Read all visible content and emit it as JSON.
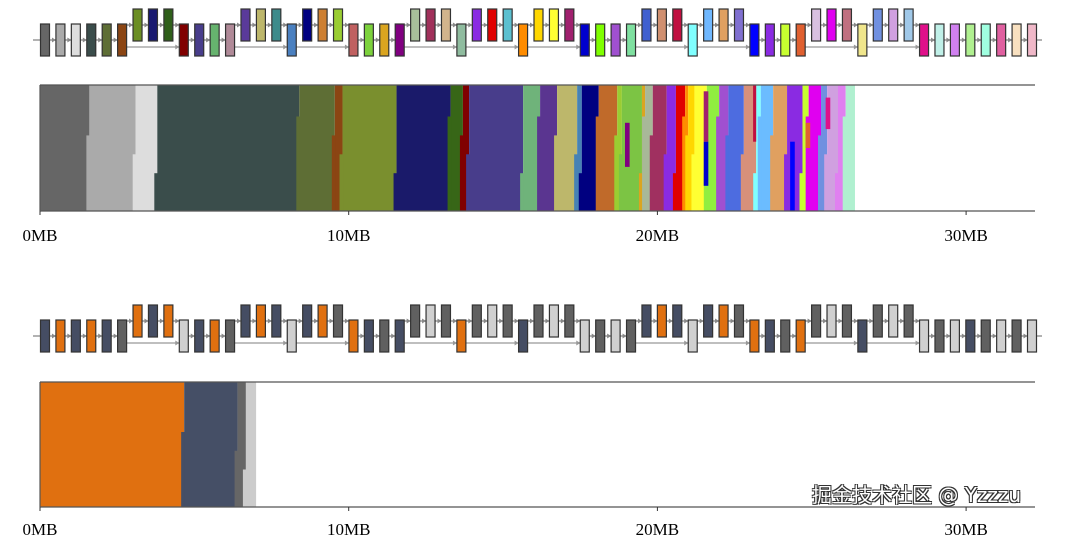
{
  "axis": {
    "unit_labels": [
      "0MB",
      "10MB",
      "20MB",
      "30MB"
    ],
    "ticks_mb": [
      0,
      10,
      20,
      30
    ],
    "xlim_mb": [
      0,
      32.2
    ]
  },
  "watermark": "掘金技术社区 @ Yzzzu",
  "panels": [
    {
      "layers": [
        [
          "low",
          "#666666"
        ],
        [
          "low",
          "#aaaaaa"
        ],
        [
          "low",
          "#dddddd"
        ],
        [
          "low",
          "#3a4d4b"
        ],
        [
          "low",
          "#5e6e35"
        ],
        [
          "low",
          "#8b4513"
        ],
        [
          "high",
          "#6b8e23"
        ],
        [
          "high",
          "#191970"
        ],
        [
          "high",
          "#2f5f1a"
        ],
        [
          "low",
          "#800000"
        ],
        [
          "low",
          "#483d8b"
        ],
        [
          "low",
          "#66b36e"
        ],
        [
          "low",
          "#b08a98"
        ],
        [
          "high",
          "#5a3a9a"
        ],
        [
          "high",
          "#bdb76b"
        ],
        [
          "high",
          "#3d8b8b"
        ],
        [
          "low",
          "#4a80c0"
        ],
        [
          "high",
          "#000080"
        ],
        [
          "high",
          "#cd7f32"
        ],
        [
          "high",
          "#9acd32"
        ],
        [
          "low",
          "#c06060"
        ],
        [
          "low",
          "#7cd13c"
        ],
        [
          "low",
          "#daa520"
        ],
        [
          "low",
          "#800080"
        ],
        [
          "high",
          "#a8c09a"
        ],
        [
          "high",
          "#a0305a"
        ],
        [
          "high",
          "#d2b48c"
        ],
        [
          "low",
          "#8fbc9f"
        ],
        [
          "high",
          "#8a2be2"
        ],
        [
          "high",
          "#e00000"
        ],
        [
          "high",
          "#5bc0d0"
        ],
        [
          "low",
          "#ff8c00"
        ],
        [
          "high",
          "#ffd700"
        ],
        [
          "high",
          "#ffff33"
        ],
        [
          "high",
          "#a0206e"
        ],
        [
          "low",
          "#0000cd"
        ],
        [
          "low",
          "#7fff00"
        ],
        [
          "low",
          "#a050d0"
        ],
        [
          "low",
          "#7fe0a0"
        ],
        [
          "high",
          "#4060d0"
        ],
        [
          "high",
          "#d09070"
        ],
        [
          "high",
          "#c01040"
        ],
        [
          "low",
          "#80ffff"
        ],
        [
          "high",
          "#70b8ff"
        ],
        [
          "high",
          "#e0a060"
        ],
        [
          "high",
          "#8070d0"
        ],
        [
          "low",
          "#0000ff"
        ],
        [
          "low",
          "#8a2be2"
        ],
        [
          "low",
          "#c8ff30"
        ],
        [
          "low",
          "#e06030"
        ],
        [
          "high",
          "#d8c0e0"
        ],
        [
          "high",
          "#e000f0"
        ],
        [
          "high",
          "#c07080"
        ],
        [
          "low",
          "#f0e68c"
        ],
        [
          "high",
          "#7090e0"
        ],
        [
          "high",
          "#d0a0e0"
        ],
        [
          "high",
          "#a0c8e8"
        ],
        [
          "low",
          "#e0108a"
        ],
        [
          "low",
          "#c0f0e8"
        ],
        [
          "low",
          "#d080f0"
        ],
        [
          "low",
          "#b0f090"
        ],
        [
          "low",
          "#a0ffe0"
        ],
        [
          "low",
          "#e060a0"
        ],
        [
          "low",
          "#f8e0c0"
        ],
        [
          "low",
          "#f0b8c8"
        ]
      ],
      "memory_blocks_mb": [
        [
          "#666666",
          0,
          1.6
        ],
        [
          "#aaaaaa",
          1.6,
          3.1
        ],
        [
          "#dddddd",
          3.1,
          3.8
        ],
        [
          "#3a4d4b",
          3.8,
          8.4
        ],
        [
          "#5e6e35",
          8.4,
          9.55
        ],
        [
          "#8b4513",
          9.55,
          9.8
        ],
        [
          "#7a8f2e",
          9.8,
          11.55
        ],
        [
          "#1a1a6a",
          11.55,
          13.3
        ],
        [
          "#376617",
          13.3,
          13.7
        ],
        [
          "#800000",
          13.7,
          13.9
        ],
        [
          "#483d8b",
          13.9,
          15.65
        ],
        [
          "#6fb37a",
          15.65,
          16.2
        ],
        [
          "#5a3590",
          16.2,
          16.75
        ],
        [
          "#bdb76b",
          16.75,
          17.4
        ],
        [
          "#4682b4",
          17.4,
          17.55
        ],
        [
          "#000080",
          17.55,
          18.1
        ],
        [
          "#c06a2a",
          18.1,
          18.7
        ],
        [
          "#9acd32",
          18.7,
          18.85
        ],
        [
          "#7cc444",
          18.85,
          19.5
        ],
        [
          "#daa520",
          19.5,
          19.6
        ],
        [
          "#a8b898",
          19.6,
          19.85
        ],
        [
          "#a03060",
          19.85,
          20.3
        ],
        [
          "#8a2be2",
          20.3,
          20.6
        ],
        [
          "#e00000",
          20.6,
          20.9
        ],
        [
          "#ff8c00",
          20.9,
          21.0
        ],
        [
          "#ffd700",
          21.0,
          21.2
        ],
        [
          "#ffff33",
          21.2,
          21.6
        ],
        [
          "#90ee40",
          21.6,
          22.0
        ],
        [
          "#a050d0",
          22.0,
          22.3
        ],
        [
          "#4d6ce0",
          22.3,
          22.8
        ],
        [
          "#d8907a",
          22.8,
          23.2
        ],
        [
          "#80ffff",
          23.2,
          23.35
        ],
        [
          "#6bbcff",
          23.35,
          23.75
        ],
        [
          "#e0a060",
          23.75,
          24.2
        ],
        [
          "#8a2be2",
          24.2,
          24.7
        ],
        [
          "#c8ff30",
          24.7,
          24.9
        ],
        [
          "#e000f0",
          24.9,
          25.3
        ],
        [
          "#7090e0",
          25.3,
          25.5
        ],
        [
          "#d0a0e0",
          25.5,
          25.85
        ],
        [
          "#e080f0",
          25.85,
          26.1
        ],
        [
          "#b0f0d0",
          26.1,
          26.4
        ]
      ],
      "memory_strips_mb": [
        [
          "#800080",
          18.95,
          19.1,
          0.3,
          0.65
        ],
        [
          "#a0206e",
          21.5,
          21.65,
          0.05,
          0.45
        ],
        [
          "#0000cd",
          21.5,
          21.65,
          0.45,
          0.8
        ],
        [
          "#c01040",
          23.1,
          23.2,
          0.0,
          0.45
        ],
        [
          "#0000ff",
          24.3,
          24.45,
          0.45,
          1.0
        ],
        [
          "#e06030",
          24.8,
          24.95,
          0.3,
          0.5
        ],
        [
          "#e0108a",
          25.45,
          25.6,
          0.1,
          0.35
        ]
      ]
    },
    {
      "layers": [
        [
          "low",
          "#454d63"
        ],
        [
          "low",
          "#e07010"
        ],
        [
          "low",
          "#454d63"
        ],
        [
          "low",
          "#e07010"
        ],
        [
          "low",
          "#454d63"
        ],
        [
          "low",
          "#606060"
        ],
        [
          "high",
          "#e07010"
        ],
        [
          "high",
          "#454d63"
        ],
        [
          "high",
          "#e07010"
        ],
        [
          "low",
          "#d0d0d0"
        ],
        [
          "low",
          "#454d63"
        ],
        [
          "low",
          "#e07010"
        ],
        [
          "low",
          "#606060"
        ],
        [
          "high",
          "#454d63"
        ],
        [
          "high",
          "#e07010"
        ],
        [
          "high",
          "#454d63"
        ],
        [
          "low",
          "#d0d0d0"
        ],
        [
          "high",
          "#454d63"
        ],
        [
          "high",
          "#e07010"
        ],
        [
          "high",
          "#606060"
        ],
        [
          "low",
          "#e07010"
        ],
        [
          "low",
          "#454d63"
        ],
        [
          "low",
          "#606060"
        ],
        [
          "low",
          "#454d63"
        ],
        [
          "high",
          "#606060"
        ],
        [
          "high",
          "#d0d0d0"
        ],
        [
          "high",
          "#606060"
        ],
        [
          "low",
          "#e07010"
        ],
        [
          "high",
          "#606060"
        ],
        [
          "high",
          "#d0d0d0"
        ],
        [
          "high",
          "#606060"
        ],
        [
          "low",
          "#454d63"
        ],
        [
          "high",
          "#606060"
        ],
        [
          "high",
          "#d0d0d0"
        ],
        [
          "high",
          "#606060"
        ],
        [
          "low",
          "#d0d0d0"
        ],
        [
          "low",
          "#606060"
        ],
        [
          "low",
          "#d0d0d0"
        ],
        [
          "low",
          "#606060"
        ],
        [
          "high",
          "#454d63"
        ],
        [
          "high",
          "#e07010"
        ],
        [
          "high",
          "#454d63"
        ],
        [
          "low",
          "#d0d0d0"
        ],
        [
          "high",
          "#454d63"
        ],
        [
          "high",
          "#e07010"
        ],
        [
          "high",
          "#606060"
        ],
        [
          "low",
          "#e07010"
        ],
        [
          "low",
          "#454d63"
        ],
        [
          "low",
          "#606060"
        ],
        [
          "low",
          "#e07010"
        ],
        [
          "high",
          "#606060"
        ],
        [
          "high",
          "#d0d0d0"
        ],
        [
          "high",
          "#606060"
        ],
        [
          "low",
          "#454d63"
        ],
        [
          "high",
          "#606060"
        ],
        [
          "high",
          "#d0d0d0"
        ],
        [
          "high",
          "#606060"
        ],
        [
          "low",
          "#d0d0d0"
        ],
        [
          "low",
          "#606060"
        ],
        [
          "low",
          "#d0d0d0"
        ],
        [
          "low",
          "#454d63"
        ],
        [
          "low",
          "#606060"
        ],
        [
          "low",
          "#d0d0d0"
        ],
        [
          "low",
          "#606060"
        ],
        [
          "low",
          "#d0d0d0"
        ]
      ],
      "memory_blocks_mb": [
        [
          "#e07010",
          0,
          4.67
        ],
        [
          "#454f66",
          4.67,
          6.4
        ],
        [
          "#666666",
          6.4,
          6.67
        ],
        [
          "#cccccc",
          6.67,
          7.0
        ]
      ],
      "memory_strips_mb": []
    }
  ]
}
